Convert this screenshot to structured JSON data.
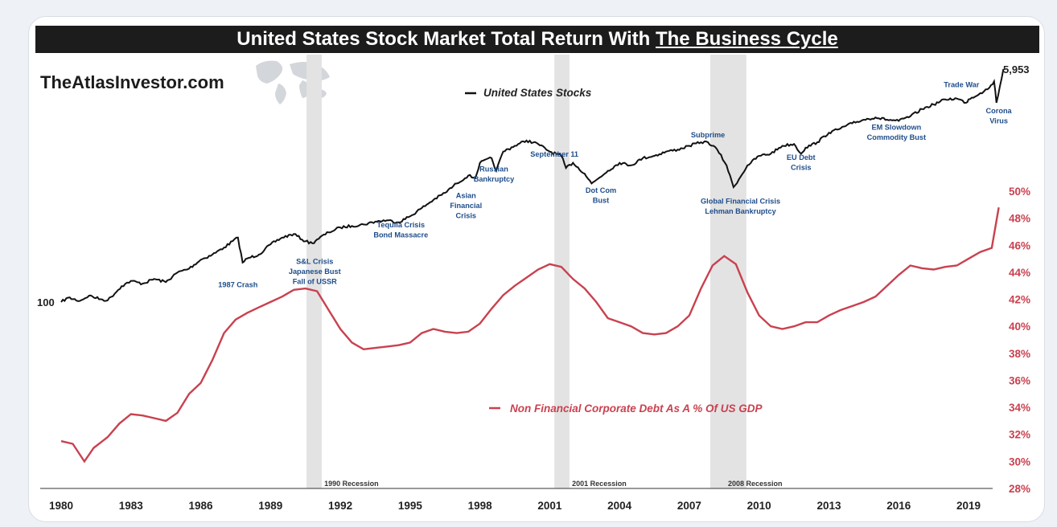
{
  "title": {
    "main": "United States Stock Market Total Return With ",
    "underlined": "The Business Cycle"
  },
  "brand": "TheAtlasInvestor.com",
  "colors": {
    "stocks": "#111111",
    "debt": "#c9414f",
    "annotation": "#1f4e8a",
    "recession": "#e3e3e3"
  },
  "chart_data": {
    "type": "line",
    "x_ticks": [
      "1980",
      "1983",
      "1986",
      "1989",
      "1992",
      "1995",
      "1998",
      "2001",
      "2004",
      "2007",
      "2010",
      "2013",
      "2016",
      "2019"
    ],
    "x_range": [
      1980,
      2020.5
    ],
    "y_right": {
      "label_ticks": [
        "28%",
        "30%",
        "32%",
        "34%",
        "36%",
        "38%",
        "40%",
        "42%",
        "44%",
        "46%",
        "48%",
        "50%"
      ],
      "range": [
        28,
        50
      ]
    },
    "stocks_start_label": "100",
    "stocks_end_label": "5,953",
    "series": [
      {
        "name": "United States Stocks",
        "axis": "log",
        "x": [
          1980,
          1980.3,
          1980.8,
          1981.2,
          1981.7,
          1982.0,
          1982.6,
          1983.0,
          1983.5,
          1984.0,
          1984.5,
          1985.0,
          1985.5,
          1986.0,
          1986.5,
          1987.0,
          1987.6,
          1987.8,
          1988.0,
          1988.5,
          1989.0,
          1989.5,
          1990.0,
          1990.5,
          1990.8,
          1991.0,
          1991.5,
          1992.0,
          1992.5,
          1993.0,
          1993.5,
          1994.0,
          1994.5,
          1995.0,
          1995.5,
          1996.0,
          1996.5,
          1997.0,
          1997.5,
          1997.8,
          1998.0,
          1998.5,
          1998.7,
          1999.0,
          1999.5,
          2000.0,
          2000.5,
          2001.0,
          2001.5,
          2001.7,
          2002.0,
          2002.5,
          2002.8,
          2003.0,
          2003.5,
          2004.0,
          2004.5,
          2005.0,
          2005.5,
          2006.0,
          2006.5,
          2007.0,
          2007.5,
          2007.8,
          2008.2,
          2008.6,
          2008.9,
          2009.2,
          2009.5,
          2010.0,
          2010.5,
          2011.0,
          2011.5,
          2011.8,
          2012.0,
          2012.5,
          2013.0,
          2013.5,
          2014.0,
          2014.5,
          2015.0,
          2015.5,
          2016.0,
          2016.5,
          2017.0,
          2017.5,
          2018.0,
          2018.5,
          2018.9,
          2019.0,
          2019.5,
          2019.9,
          2020.1,
          2020.2,
          2020.5
        ],
        "y": [
          100,
          108,
          102,
          112,
          105,
          103,
          132,
          145,
          138,
          150,
          142,
          168,
          180,
          210,
          230,
          260,
          310,
          200,
          215,
          230,
          275,
          310,
          330,
          290,
          280,
          300,
          340,
          370,
          380,
          390,
          410,
          420,
          405,
          450,
          520,
          600,
          680,
          800,
          920,
          880,
          1150,
          1250,
          1000,
          1400,
          1550,
          1700,
          1600,
          1400,
          1300,
          1050,
          1150,
          950,
          800,
          850,
          1000,
          1150,
          1100,
          1250,
          1300,
          1400,
          1450,
          1550,
          1650,
          1650,
          1450,
          1100,
          750,
          900,
          1100,
          1300,
          1350,
          1550,
          1600,
          1350,
          1500,
          1650,
          1950,
          2100,
          2300,
          2450,
          2550,
          2450,
          2400,
          2600,
          2950,
          3200,
          3500,
          3550,
          3300,
          3500,
          3900,
          4300,
          4800,
          3300,
          5953
        ]
      },
      {
        "name": "Non Financial Corporate Debt As A % Of US GDP",
        "axis": "pct",
        "x": [
          1980,
          1980.5,
          1981,
          1981.4,
          1982,
          1982.5,
          1983,
          1983.5,
          1984,
          1984.5,
          1985,
          1985.5,
          1986,
          1986.5,
          1987,
          1987.5,
          1988,
          1988.5,
          1989,
          1989.5,
          1990,
          1990.5,
          1991,
          1991.5,
          1992,
          1992.5,
          1993,
          1993.5,
          1994,
          1994.5,
          1995,
          1995.5,
          1996,
          1996.5,
          1997,
          1997.5,
          1998,
          1998.5,
          1999,
          1999.5,
          2000,
          2000.5,
          2001,
          2001.5,
          2002,
          2002.5,
          2003,
          2003.5,
          2004,
          2004.5,
          2005,
          2005.5,
          2006,
          2006.5,
          2007,
          2007.5,
          2008,
          2008.5,
          2009,
          2009.5,
          2010,
          2010.5,
          2011,
          2011.5,
          2012,
          2012.5,
          2013,
          2013.5,
          2014,
          2014.5,
          2015,
          2015.5,
          2016,
          2016.5,
          2017,
          2017.5,
          2018,
          2018.5,
          2019,
          2019.5,
          2020,
          2020.3
        ],
        "y": [
          31.5,
          31.3,
          30.0,
          31.0,
          31.8,
          32.8,
          33.5,
          33.4,
          33.2,
          33.0,
          33.6,
          35.0,
          35.8,
          37.5,
          39.5,
          40.5,
          41.0,
          41.4,
          41.8,
          42.2,
          42.7,
          42.8,
          42.6,
          41.2,
          39.8,
          38.8,
          38.3,
          38.4,
          38.5,
          38.6,
          38.8,
          39.5,
          39.8,
          39.6,
          39.5,
          39.6,
          40.2,
          41.3,
          42.3,
          43.0,
          43.6,
          44.2,
          44.6,
          44.4,
          43.5,
          42.8,
          41.8,
          40.6,
          40.3,
          40.0,
          39.5,
          39.4,
          39.5,
          40.0,
          40.8,
          42.8,
          44.5,
          45.2,
          44.6,
          42.5,
          40.8,
          40.0,
          39.8,
          40.0,
          40.3,
          40.3,
          40.8,
          41.2,
          41.5,
          41.8,
          42.2,
          43.0,
          43.8,
          44.5,
          44.3,
          44.2,
          44.4,
          44.5,
          45.0,
          45.5,
          45.8,
          48.8
        ]
      }
    ],
    "recessions": [
      {
        "start": 1990.55,
        "end": 1991.2,
        "label": "1990 Recession"
      },
      {
        "start": 2001.2,
        "end": 2001.85,
        "label": "2001 Recession"
      },
      {
        "start": 2007.9,
        "end": 2009.45,
        "label": "2008 Recession"
      }
    ],
    "annotations": [
      {
        "id": "1987-crash",
        "lines": [
          "1987 Crash"
        ],
        "x": 1987.6,
        "ylog": 130
      },
      {
        "id": "snl-crisis",
        "lines": [
          "S&L Crisis",
          "Japanese Bust",
          "Fall of USSR"
        ],
        "x": 1990.9,
        "ylog": 195
      },
      {
        "id": "tequila",
        "lines": [
          "Tequila Crisis",
          "Bond Massacre"
        ],
        "x": 1994.6,
        "ylog": 370
      },
      {
        "id": "asian",
        "lines": [
          "Asian",
          "Financial",
          "Crisis"
        ],
        "x": 1997.4,
        "ylog": 620
      },
      {
        "id": "russian",
        "lines": [
          "Russian",
          "Bankruptcy"
        ],
        "x": 1998.6,
        "ylog": 990
      },
      {
        "id": "sept11",
        "lines": [
          "September 11"
        ],
        "x": 2001.2,
        "ylog": 1280
      },
      {
        "id": "dotcom",
        "lines": [
          "Dot Com",
          "Bust"
        ],
        "x": 2003.2,
        "ylog": 680
      },
      {
        "id": "subprime",
        "lines": [
          "Subprime"
        ],
        "x": 2007.8,
        "ylog": 1800
      },
      {
        "id": "gfc",
        "lines": [
          "Global Financial Crisis",
          "Lehman Bankruptcy"
        ],
        "x": 2009.2,
        "ylog": 560
      },
      {
        "id": "eudebt",
        "lines": [
          "EU Debt",
          "Crisis"
        ],
        "x": 2011.8,
        "ylog": 1210
      },
      {
        "id": "em",
        "lines": [
          "EM Slowdown",
          "Commodity Bust"
        ],
        "x": 2015.9,
        "ylog": 2050
      },
      {
        "id": "tradewar",
        "lines": [
          "Trade War"
        ],
        "x": 2018.7,
        "ylog": 4350
      },
      {
        "id": "corona",
        "lines": [
          "Corona",
          "Virus"
        ],
        "x": 2020.3,
        "ylog": 2750
      }
    ]
  }
}
